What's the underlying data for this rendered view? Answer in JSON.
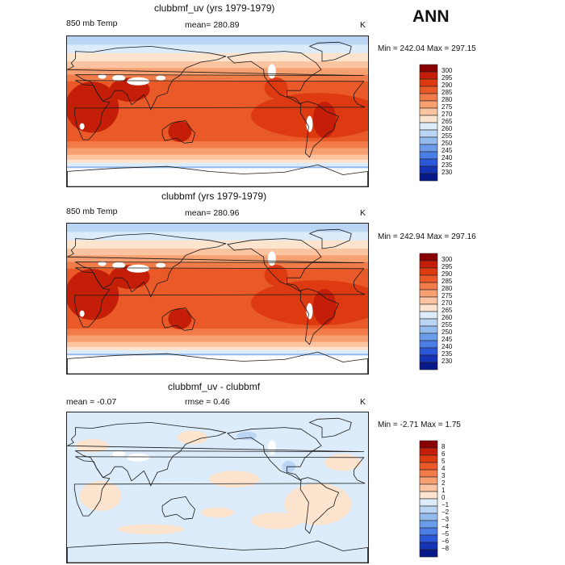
{
  "season": "ANN",
  "panels": [
    {
      "title": "clubbmf_uv (yrs 1979-1979)",
      "variable": "850 mb Temp",
      "stat": "mean=  280.89",
      "stat2": "",
      "units": "K",
      "minmax": "Min = 242.04  Max = 297.15",
      "colorbar": {
        "labels": [
          "300",
          "295",
          "290",
          "285",
          "280",
          "275",
          "270",
          "265",
          "260",
          "255",
          "250",
          "245",
          "240",
          "235",
          "230"
        ],
        "colors": [
          "#8b0000",
          "#c41e08",
          "#dd3a12",
          "#ea5a28",
          "#f27b4a",
          "#f7a071",
          "#fac4a0",
          "#fde4cf",
          "#dcecfa",
          "#bad6f4",
          "#93bbee",
          "#6b9ceb",
          "#4a7de6",
          "#2a58d9",
          "#1533b5",
          "#081a8a"
        ]
      }
    },
    {
      "title": "clubbmf (yrs 1979-1979)",
      "variable": "850 mb Temp",
      "stat": "mean=  280.96",
      "stat2": "",
      "units": "K",
      "minmax": "Min = 242.94  Max = 297.16",
      "colorbar": {
        "labels": [
          "300",
          "295",
          "290",
          "285",
          "280",
          "275",
          "270",
          "265",
          "260",
          "255",
          "250",
          "245",
          "240",
          "235",
          "230"
        ],
        "colors": [
          "#8b0000",
          "#c41e08",
          "#dd3a12",
          "#ea5a28",
          "#f27b4a",
          "#f7a071",
          "#fac4a0",
          "#fde4cf",
          "#dcecfa",
          "#bad6f4",
          "#93bbee",
          "#6b9ceb",
          "#4a7de6",
          "#2a58d9",
          "#1533b5",
          "#081a8a"
        ]
      }
    },
    {
      "title": "clubbmf_uv - clubbmf",
      "variable": "mean =   -0.07",
      "stat": "rmse =    0.46",
      "stat2": "",
      "units": "K",
      "minmax": "Min =  -2.71  Max =    1.75",
      "colorbar": {
        "labels": [
          "8",
          "6",
          "5",
          "4",
          "3",
          "2",
          "1",
          "0",
          "−1",
          "−2",
          "−3",
          "−4",
          "−5",
          "−6",
          "−8"
        ],
        "colors": [
          "#8b0000",
          "#c41e08",
          "#dd3a12",
          "#ea5a28",
          "#f27b4a",
          "#f7a071",
          "#fac4a0",
          "#fde4cf",
          "#dcecfa",
          "#bad6f4",
          "#93bbee",
          "#6b9ceb",
          "#4a7de6",
          "#2a58d9",
          "#1533b5",
          "#081a8a"
        ]
      }
    }
  ]
}
